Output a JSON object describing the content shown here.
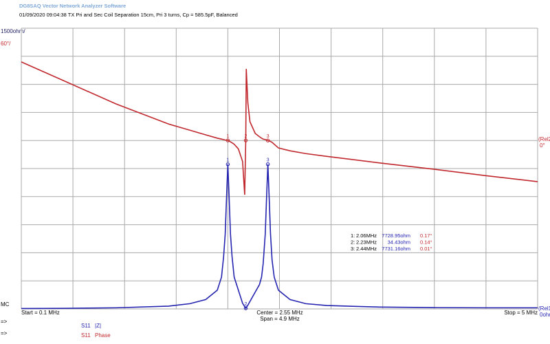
{
  "chart_data": {
    "type": "line",
    "app_title": "DG8SAQ Vector Network Analyzer Software",
    "subtitle": "01/09/2020   09:04:38   TX Pri and Sec Coil Separation 15cm, Pri 3 turns, Cp = 585.5pF, Balanced",
    "y_scale_label": "1500ohm/",
    "y2_scale_label": "60°/",
    "ref2_label": "(Rel2",
    "ref2_value": "0°",
    "ref1_label": "(Rel1",
    "ref1_value": "0ohm",
    "mode_label": "MC",
    "start_label": "Start = 0.1 MHz",
    "center_label": "Center = 2.55 MHz",
    "span_label": "Span = 4.9 MHz",
    "stop_label": "Stop = 5 MHz",
    "legend_arrows": [
      "=>",
      "=>"
    ],
    "grid": true,
    "xlim": [
      0.1,
      5
    ],
    "xticks": [
      0.1,
      0.59,
      1.08,
      1.57,
      2.06,
      2.55,
      3.04,
      3.53,
      4.02,
      4.51,
      5
    ],
    "ylim": [
      0,
      15000
    ],
    "yticks": [
      0,
      1500,
      3000,
      4500,
      6000,
      7500,
      9000,
      10500,
      12000,
      13500,
      15000
    ],
    "y2lim": [
      -360,
      240
    ],
    "x": [
      0.1,
      0.5,
      1.0,
      1.5,
      1.7,
      1.85,
      1.96,
      2.0,
      2.02,
      2.035,
      2.048,
      2.06,
      2.072,
      2.085,
      2.1,
      2.12,
      2.16,
      2.2,
      2.22,
      2.23,
      2.235,
      2.25,
      2.27,
      2.32,
      2.36,
      2.38,
      2.395,
      2.415,
      2.428,
      2.44,
      2.452,
      2.465,
      2.48,
      2.5,
      2.54,
      2.65,
      2.8,
      3.0,
      3.5,
      4.0,
      4.5,
      5.0
    ],
    "series": [
      {
        "source": "S11",
        "name": "|Z|",
        "color": "#2323b0",
        "axis": "y",
        "values": [
          20,
          30,
          60,
          150,
          280,
          500,
          1000,
          1700,
          2800,
          4000,
          6000,
          7728.95,
          6000,
          4000,
          2800,
          1700,
          1000,
          300,
          120,
          34.43,
          80,
          200,
          400,
          900,
          1300,
          1700,
          2400,
          4000,
          6000,
          7731.16,
          6000,
          4000,
          2600,
          1700,
          1000,
          500,
          280,
          180,
          100,
          70,
          60,
          60
        ]
      },
      {
        "source": "S11",
        "name": "Phase",
        "color": "#c0272d",
        "axis": "y2",
        "values": [
          168,
          128,
          78,
          35,
          22,
          12,
          5,
          3,
          2,
          1,
          0.5,
          0.17,
          -1,
          -3,
          -5,
          -8,
          -18,
          -45,
          -116,
          0.14,
          153,
          80,
          40,
          15,
          8,
          5,
          3,
          2,
          1,
          0.01,
          -1,
          -2,
          -4,
          -8,
          -16,
          -22,
          -28,
          -34,
          -48,
          -61,
          -75,
          -88
        ]
      }
    ],
    "markers": {
      "x": [
        2.06,
        2.23,
        2.44
      ],
      "labels": [
        "1",
        "2",
        "3"
      ]
    },
    "marker_table": [
      [
        "1:",
        "2.06MHz",
        "7728.95ohm",
        "0.17°"
      ],
      [
        "2:",
        "2.23MHz",
        "34.43ohm",
        "0.14°"
      ],
      [
        "3:",
        "2.44MHz",
        "7731.16ohm",
        "0.01°"
      ]
    ]
  }
}
